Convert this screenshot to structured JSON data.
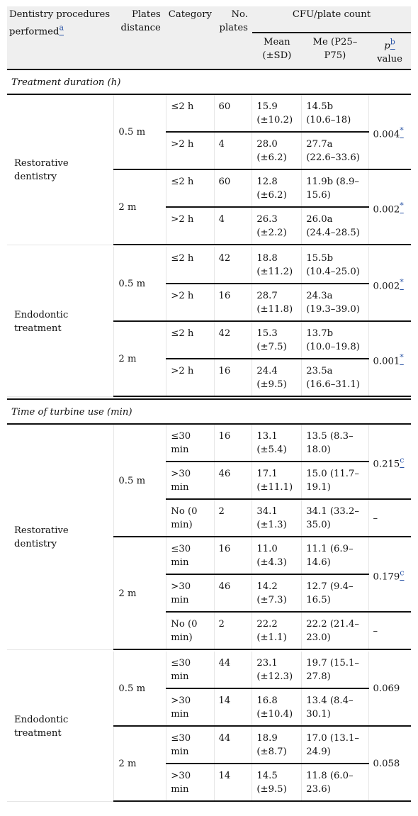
{
  "header": {
    "col1": "Dentistry procedures performed",
    "col1_sup": "a",
    "col2": "Plates distance",
    "col3": "Category",
    "col4": "No. plates",
    "col5_group": "CFU/plate count",
    "mean": "Mean (±SD)",
    "median": "Me (P25–P75)",
    "p": "p",
    "p_sup": "b",
    "p_suffix": "value"
  },
  "sections": [
    {
      "title": "Treatment duration (h)",
      "groups": [
        {
          "procedure": "Restorative dentistry",
          "distances": [
            {
              "distance": "0.5 m",
              "p": "0.004",
              "p_sup": "*",
              "rows": [
                {
                  "cat": "≤2 h",
                  "n": "60",
                  "mean": "15.9 (±10.2)",
                  "med": "14.5b (10.6–18)"
                },
                {
                  "cat": ">2 h",
                  "n": "4",
                  "mean": "28.0 (±6.2)",
                  "med": "27.7a (22.6–33.6)"
                }
              ]
            },
            {
              "distance": "2 m",
              "p": "0.002",
              "p_sup": "*",
              "rows": [
                {
                  "cat": "≤2 h",
                  "n": "60",
                  "mean": "12.8 (±6.2)",
                  "med": "11.9b (8.9–15.6)"
                },
                {
                  "cat": ">2 h",
                  "n": "4",
                  "mean": "26.3 (±2.2)",
                  "med": "26.0a (24.4–28.5)"
                }
              ]
            }
          ]
        },
        {
          "procedure": "Endodontic treatment",
          "distances": [
            {
              "distance": "0.5 m",
              "p": "0.002",
              "p_sup": "*",
              "rows": [
                {
                  "cat": "≤2 h",
                  "n": "42",
                  "mean": "18.8 (±11.2)",
                  "med": "15.5b (10.4–25.0)"
                },
                {
                  "cat": ">2 h",
                  "n": "16",
                  "mean": "28.7 (±11.8)",
                  "med": "24.3a (19.3–39.0)"
                }
              ]
            },
            {
              "distance": "2 m",
              "p": "0.001",
              "p_sup": "*",
              "rows": [
                {
                  "cat": "≤2 h",
                  "n": "42",
                  "mean": "15.3 (±7.5)",
                  "med": "13.7b (10.0–19.8)"
                },
                {
                  "cat": ">2 h",
                  "n": "16",
                  "mean": "24.4 (±9.5)",
                  "med": "23.5a (16.6–31.1)"
                }
              ]
            }
          ]
        }
      ]
    },
    {
      "title": "Time of turbine use (min)",
      "groups": [
        {
          "procedure": "Restorative dentistry",
          "distances": [
            {
              "distance": "0.5 m",
              "p": "0.215",
              "p_sup": "c",
              "rows": [
                {
                  "cat": "≤30 min",
                  "n": "16",
                  "mean": "13.1 (±5.4)",
                  "med": "13.5 (8.3–18.0)"
                },
                {
                  "cat": ">30 min",
                  "n": "46",
                  "mean": "17.1 (±11.1)",
                  "med": "15.0 (11.7–19.1)"
                },
                {
                  "cat": "No (0 min)",
                  "n": "2",
                  "mean": "34.1 (±1.3)",
                  "med": "34.1 (33.2–35.0)",
                  "p": "–"
                }
              ]
            },
            {
              "distance": "2 m",
              "p": "0.179",
              "p_sup": "c",
              "rows": [
                {
                  "cat": "≤30 min",
                  "n": "16",
                  "mean": "11.0 (±4.3)",
                  "med": "11.1 (6.9–14.6)"
                },
                {
                  "cat": ">30 min",
                  "n": "46",
                  "mean": "14.2 (±7.3)",
                  "med": "12.7 (9.4–16.5)"
                },
                {
                  "cat": "No (0 min)",
                  "n": "2",
                  "mean": "22.2 (±1.1)",
                  "med": "22.2 (21.4–23.0)",
                  "p": "–"
                }
              ]
            }
          ]
        },
        {
          "procedure": "Endodontic treatment",
          "distances": [
            {
              "distance": "0.5 m",
              "p": "0.069",
              "p_sup": "",
              "rows": [
                {
                  "cat": "≤30 min",
                  "n": "44",
                  "mean": "23.1 (±12.3)",
                  "med": "19.7 (15.1–27.8)"
                },
                {
                  "cat": ">30 min",
                  "n": "14",
                  "mean": "16.8 (±10.4)",
                  "med": "13.4 (8.4–30.1)"
                }
              ]
            },
            {
              "distance": "2 m",
              "p": "0.058",
              "p_sup": "",
              "rows": [
                {
                  "cat": "≤30 min",
                  "n": "44",
                  "mean": "18.9 (±8.7)",
                  "med": "17.0 (13.1–24.9)"
                },
                {
                  "cat": ">30 min",
                  "n": "14",
                  "mean": "14.5 (±9.5)",
                  "med": "11.8 (6.0–23.6)"
                }
              ]
            }
          ]
        }
      ]
    }
  ]
}
